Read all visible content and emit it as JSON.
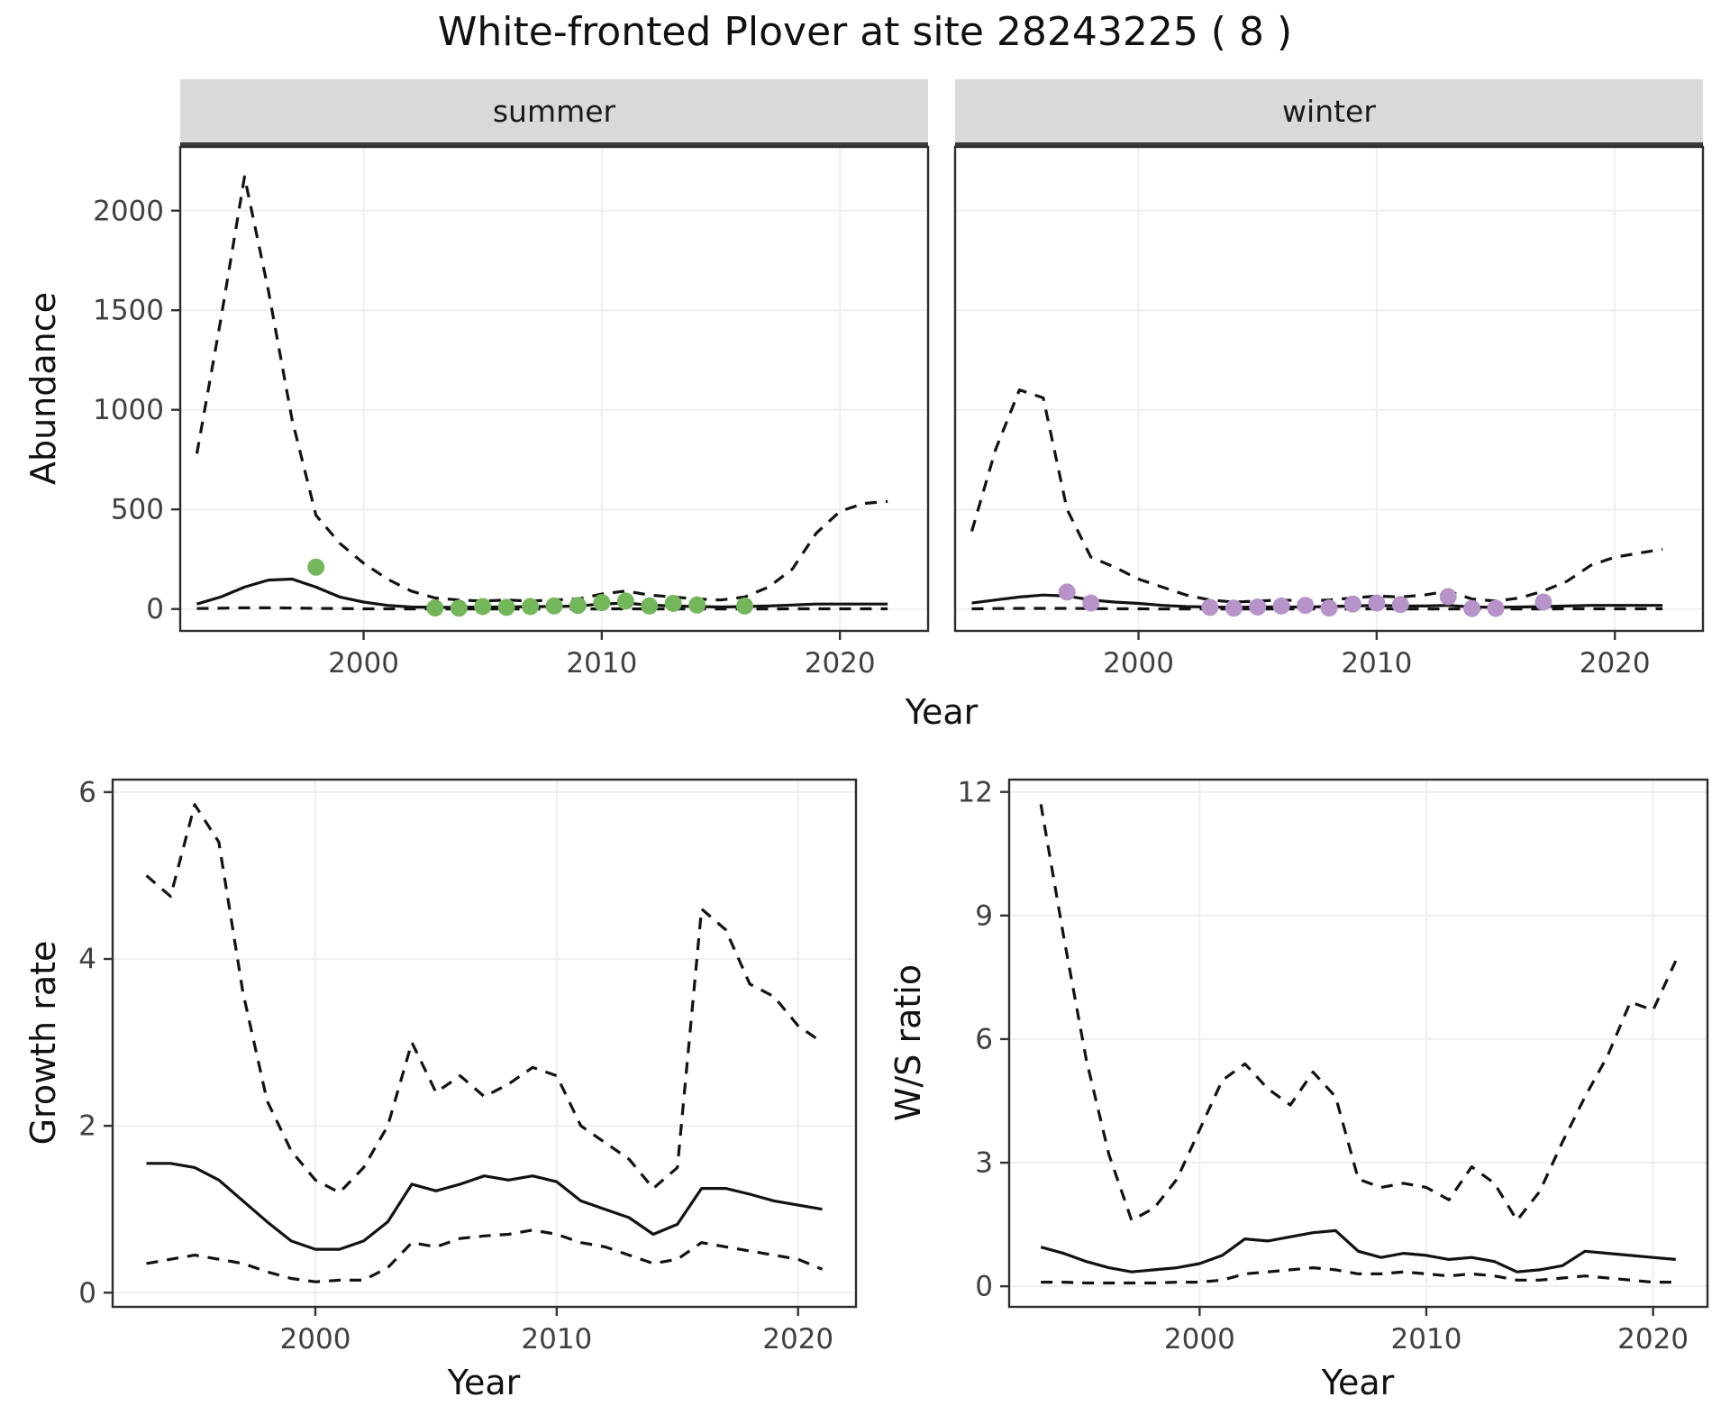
{
  "header": {
    "title": "White-fronted Plover at site 28243225 ( 8 )"
  },
  "axes": {
    "abundance": "Abundance",
    "growth_rate": "Growth rate",
    "ws_ratio": "W/S ratio",
    "year": "Year"
  },
  "point_colors": {
    "summer": "#74b65a",
    "winter": "#b694ca"
  },
  "chart_data": [
    {
      "id": "abundance_summer",
      "type": "line",
      "facet_label": "summer",
      "title": "",
      "xlabel": "Year",
      "ylabel": "Abundance",
      "xlim": [
        1992.3,
        2023.7
      ],
      "ylim": [
        -110,
        2320
      ],
      "xticks": [
        2000,
        2010,
        2020
      ],
      "yticks": [
        0,
        500,
        1000,
        1500,
        2000
      ],
      "x": [
        1993,
        1994,
        1995,
        1996,
        1997,
        1998,
        1999,
        2000,
        2001,
        2002,
        2003,
        2004,
        2005,
        2006,
        2007,
        2008,
        2009,
        2010,
        2011,
        2012,
        2013,
        2014,
        2015,
        2016,
        2017,
        2018,
        2019,
        2020,
        2021,
        2022
      ],
      "series": [
        {
          "name": "upper_ci",
          "style": "dashed",
          "values": [
            780,
            1450,
            2170,
            1600,
            950,
            470,
            330,
            230,
            150,
            90,
            55,
            45,
            40,
            45,
            40,
            45,
            50,
            75,
            90,
            70,
            60,
            50,
            45,
            60,
            110,
            200,
            380,
            490,
            530,
            540
          ]
        },
        {
          "name": "median",
          "style": "solid",
          "values": [
            25,
            60,
            110,
            145,
            150,
            110,
            60,
            35,
            18,
            10,
            8,
            8,
            10,
            10,
            12,
            12,
            15,
            25,
            30,
            20,
            15,
            12,
            10,
            12,
            15,
            20,
            25,
            25,
            25,
            25
          ]
        },
        {
          "name": "lower_ci",
          "style": "dashed",
          "values": [
            2,
            4,
            6,
            6,
            5,
            3,
            2,
            1,
            1,
            0,
            0,
            0,
            0,
            0,
            0,
            0,
            0,
            1,
            1,
            0,
            0,
            0,
            0,
            0,
            0,
            1,
            1,
            1,
            1,
            1
          ]
        }
      ],
      "points": {
        "name": "observed_counts",
        "color": "#74b65a",
        "data": [
          [
            1998,
            210
          ],
          [
            2003,
            5
          ],
          [
            2004,
            4
          ],
          [
            2005,
            12
          ],
          [
            2006,
            8
          ],
          [
            2007,
            12
          ],
          [
            2008,
            15
          ],
          [
            2009,
            18
          ],
          [
            2010,
            32
          ],
          [
            2011,
            40
          ],
          [
            2012,
            15
          ],
          [
            2013,
            28
          ],
          [
            2014,
            20
          ],
          [
            2016,
            15
          ]
        ]
      }
    },
    {
      "id": "abundance_winter",
      "type": "line",
      "facet_label": "winter",
      "title": "",
      "xlabel": "Year",
      "ylabel": "Abundance",
      "xlim": [
        1992.3,
        2023.7
      ],
      "ylim": [
        -110,
        2320
      ],
      "xticks": [
        2000,
        2010,
        2020
      ],
      "yticks": [
        0,
        500,
        1000,
        1500,
        2000
      ],
      "x": [
        1993,
        1994,
        1995,
        1996,
        1997,
        1998,
        1999,
        2000,
        2001,
        2002,
        2003,
        2004,
        2005,
        2006,
        2007,
        2008,
        2009,
        2010,
        2011,
        2012,
        2013,
        2014,
        2015,
        2016,
        2017,
        2018,
        2019,
        2020,
        2021,
        2022
      ],
      "series": [
        {
          "name": "upper_ci",
          "style": "dashed",
          "values": [
            390,
            800,
            1100,
            1060,
            500,
            260,
            210,
            150,
            110,
            70,
            45,
            35,
            40,
            45,
            40,
            45,
            55,
            65,
            60,
            70,
            90,
            50,
            40,
            55,
            90,
            140,
            220,
            260,
            280,
            300
          ]
        },
        {
          "name": "median",
          "style": "solid",
          "values": [
            30,
            45,
            60,
            70,
            65,
            45,
            35,
            28,
            18,
            12,
            10,
            8,
            10,
            10,
            10,
            12,
            15,
            18,
            15,
            15,
            18,
            10,
            8,
            10,
            12,
            15,
            18,
            18,
            18,
            18
          ]
        },
        {
          "name": "lower_ci",
          "style": "dashed",
          "values": [
            1,
            2,
            3,
            3,
            3,
            2,
            1,
            1,
            0,
            0,
            0,
            0,
            0,
            0,
            0,
            0,
            0,
            1,
            0,
            0,
            0,
            0,
            0,
            0,
            0,
            1,
            1,
            1,
            1,
            1
          ]
        }
      ],
      "points": {
        "name": "observed_counts",
        "color": "#b694ca",
        "data": [
          [
            1997,
            85
          ],
          [
            1998,
            30
          ],
          [
            2003,
            8
          ],
          [
            2004,
            4
          ],
          [
            2005,
            10
          ],
          [
            2006,
            15
          ],
          [
            2007,
            18
          ],
          [
            2008,
            5
          ],
          [
            2009,
            25
          ],
          [
            2010,
            30
          ],
          [
            2011,
            22
          ],
          [
            2013,
            62
          ],
          [
            2014,
            2
          ],
          [
            2015,
            3
          ],
          [
            2017,
            35
          ]
        ]
      }
    },
    {
      "id": "growth_rate",
      "type": "line",
      "facet_label": "",
      "title": "",
      "xlabel": "Year",
      "ylabel": "Growth rate",
      "xlim": [
        1991.6,
        2022.4
      ],
      "ylim": [
        -0.17,
        6.15
      ],
      "xticks": [
        2000,
        2010,
        2020
      ],
      "yticks": [
        0,
        2,
        4,
        6
      ],
      "x": [
        1993,
        1994,
        1995,
        1996,
        1997,
        1998,
        1999,
        2000,
        2001,
        2002,
        2003,
        2004,
        2005,
        2006,
        2007,
        2008,
        2009,
        2010,
        2011,
        2012,
        2013,
        2014,
        2015,
        2016,
        2017,
        2018,
        2019,
        2020,
        2021
      ],
      "series": [
        {
          "name": "upper_ci",
          "style": "dashed",
          "values": [
            5.0,
            4.75,
            5.85,
            5.4,
            3.6,
            2.3,
            1.7,
            1.35,
            1.2,
            1.5,
            2.0,
            3.0,
            2.4,
            2.6,
            2.35,
            2.5,
            2.7,
            2.6,
            2.0,
            1.8,
            1.6,
            1.25,
            1.5,
            4.6,
            4.35,
            3.7,
            3.55,
            3.2,
            3.0
          ]
        },
        {
          "name": "median",
          "style": "solid",
          "values": [
            1.55,
            1.55,
            1.5,
            1.35,
            1.1,
            0.85,
            0.62,
            0.52,
            0.52,
            0.62,
            0.85,
            1.3,
            1.22,
            1.3,
            1.4,
            1.35,
            1.4,
            1.33,
            1.1,
            1.0,
            0.9,
            0.7,
            0.82,
            1.25,
            1.25,
            1.18,
            1.1,
            1.05,
            1.0
          ]
        },
        {
          "name": "lower_ci",
          "style": "dashed",
          "values": [
            0.35,
            0.4,
            0.45,
            0.4,
            0.35,
            0.25,
            0.17,
            0.13,
            0.15,
            0.15,
            0.3,
            0.6,
            0.55,
            0.65,
            0.68,
            0.7,
            0.75,
            0.7,
            0.6,
            0.55,
            0.45,
            0.35,
            0.4,
            0.6,
            0.55,
            0.5,
            0.45,
            0.4,
            0.28
          ]
        }
      ],
      "points": null
    },
    {
      "id": "ws_ratio",
      "type": "line",
      "facet_label": "",
      "title": "",
      "xlabel": "Year",
      "ylabel": "W/S ratio",
      "xlim": [
        1991.6,
        2022.4
      ],
      "ylim": [
        -0.5,
        12.3
      ],
      "xticks": [
        2000,
        2010,
        2020
      ],
      "yticks": [
        0,
        3,
        6,
        9,
        12
      ],
      "x": [
        1993,
        1994,
        1995,
        1996,
        1997,
        1998,
        1999,
        2000,
        2001,
        2002,
        2003,
        2004,
        2005,
        2006,
        2007,
        2008,
        2009,
        2010,
        2011,
        2012,
        2013,
        2014,
        2015,
        2016,
        2017,
        2018,
        2019,
        2020,
        2021
      ],
      "series": [
        {
          "name": "upper_ci",
          "style": "dashed",
          "values": [
            11.7,
            8.5,
            5.5,
            3.2,
            1.6,
            1.9,
            2.6,
            3.8,
            5.0,
            5.4,
            4.8,
            4.4,
            5.2,
            4.6,
            2.6,
            2.4,
            2.5,
            2.4,
            2.1,
            2.9,
            2.5,
            1.6,
            2.3,
            3.5,
            4.6,
            5.6,
            6.9,
            6.7,
            7.9
          ]
        },
        {
          "name": "median",
          "style": "solid",
          "values": [
            0.95,
            0.8,
            0.6,
            0.45,
            0.35,
            0.4,
            0.45,
            0.55,
            0.75,
            1.15,
            1.1,
            1.2,
            1.3,
            1.35,
            0.85,
            0.7,
            0.8,
            0.75,
            0.65,
            0.7,
            0.6,
            0.35,
            0.4,
            0.5,
            0.85,
            0.8,
            0.75,
            0.7,
            0.65
          ]
        },
        {
          "name": "lower_ci",
          "style": "dashed",
          "values": [
            0.1,
            0.1,
            0.08,
            0.08,
            0.08,
            0.08,
            0.1,
            0.1,
            0.15,
            0.3,
            0.35,
            0.4,
            0.45,
            0.4,
            0.3,
            0.3,
            0.35,
            0.3,
            0.25,
            0.3,
            0.25,
            0.15,
            0.15,
            0.2,
            0.25,
            0.2,
            0.15,
            0.1,
            0.1
          ]
        }
      ],
      "points": null
    }
  ]
}
